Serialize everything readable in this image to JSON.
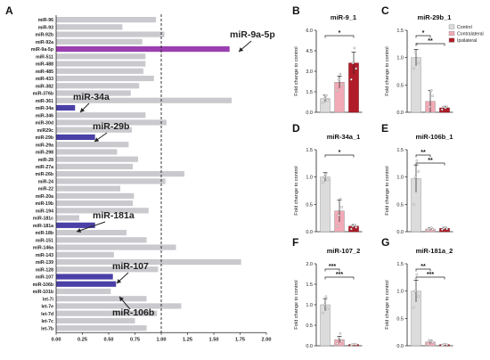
{
  "panel_labels": [
    "A",
    "B",
    "C",
    "D",
    "E",
    "F",
    "G"
  ],
  "colors": {
    "gray_bar": "#c9c9ce",
    "highlight_purple": "#9b3fb0",
    "highlight_blue": "#4a40a6",
    "control": "#dcdcdc",
    "contralateral": "#f2aab6",
    "ipsilateral": "#b01c28"
  },
  "chart_data": [
    {
      "panel": "A",
      "type": "bar",
      "orientation": "horizontal",
      "categories": [
        "miR-96",
        "miR-93",
        "miR-92b",
        "miR-92a",
        "miR-9a-5p",
        "miR-511",
        "miR-488",
        "miR-485",
        "miR-433",
        "miR-382",
        "miR-376b",
        "miR-361",
        "miR-34a",
        "miR-346",
        "miR-30d",
        "miR29c",
        "miR-29b",
        "miR-29a",
        "miR-298",
        "miR-28",
        "miR-27a",
        "miR-26b",
        "miR-24",
        "miR-22",
        "miR-20a",
        "miR-19b",
        "miR-194",
        "miR-181c",
        "miR-181a",
        "miR-18b",
        "miR-151",
        "miR-146a",
        "miR-143",
        "miR-139",
        "miR-128",
        "miR-107",
        "miR-106b",
        "miR-101b",
        "let-7i",
        "let-7e",
        "let-7d",
        "let-7c",
        "let-7b"
      ],
      "values": [
        0.95,
        0.63,
        1.03,
        0.82,
        1.65,
        0.85,
        0.85,
        0.83,
        0.93,
        0.79,
        0.71,
        1.67,
        0.18,
        0.85,
        1.05,
        0.72,
        0.37,
        0.69,
        0.58,
        0.78,
        0.73,
        1.22,
        1.04,
        0.61,
        0.74,
        0.73,
        0.88,
        0.22,
        0.37,
        0.67,
        0.86,
        1.14,
        0.55,
        1.76,
        0.97,
        0.54,
        0.57,
        0.52,
        0.86,
        1.19,
        0.96,
        0.75,
        0.86
      ],
      "highlight": {
        "miR-9a-5p": "purple",
        "miR-34a": "blue",
        "miR-29b": "blue",
        "miR-181a": "blue",
        "miR-107": "blue",
        "miR-106b": "blue"
      },
      "annotations": [
        "miR-9a-5p",
        "miR-34a",
        "miR-29b",
        "miR-181a",
        "miR-107",
        "miR-106b"
      ],
      "xticks": [
        "0.00",
        "0.25",
        "0.50",
        "0.75",
        "1.00",
        "1.25",
        "1.50",
        "1.75",
        "2.00"
      ],
      "xlim": [
        0,
        2.0
      ],
      "reference_line": 1.0,
      "grid": false
    },
    {
      "panel": "B",
      "type": "bar",
      "title": "miR-9_1",
      "ylabel": "Fold change to control",
      "ylim": [
        0,
        6
      ],
      "yticks": [
        "0.0",
        "1.5",
        "3.0",
        "4.5",
        "6.0"
      ],
      "categories": [
        "Control",
        "Contralateral",
        "Ipsilateral"
      ],
      "values": [
        1.0,
        2.2,
        3.6
      ],
      "errors": [
        0.25,
        0.45,
        0.8
      ],
      "points": [
        [
          0.7,
          1.0,
          1.2,
          0.9
        ],
        [
          1.6,
          2.4,
          2.8,
          2.0
        ],
        [
          2.4,
          3.6,
          4.7,
          3.2
        ]
      ],
      "significance": [
        {
          "between": [
            0,
            2
          ],
          "label": "*"
        }
      ]
    },
    {
      "panel": "C",
      "type": "bar",
      "title": "miR-29b_1",
      "ylabel": "Fold change to control",
      "ylim": [
        0,
        1.5
      ],
      "yticks": [
        "0.0",
        "0.5",
        "1.0",
        "1.5"
      ],
      "categories": [
        "Control",
        "Contralateral",
        "Ipsilateral"
      ],
      "values": [
        1.0,
        0.2,
        0.08
      ],
      "errors": [
        0.15,
        0.2,
        0.03
      ],
      "points": [
        [
          0.8,
          1.1,
          1.25,
          0.9
        ],
        [
          0.0,
          0.1,
          0.4,
          0.3
        ],
        [
          0.05,
          0.1,
          0.08,
          0.1
        ]
      ],
      "significance": [
        {
          "between": [
            0,
            1
          ],
          "label": "*"
        },
        {
          "between": [
            0,
            2
          ],
          "label": "**"
        }
      ],
      "legend": {
        "entries": [
          "Control",
          "Contralateral",
          "Ipsilateral"
        ],
        "placement": "top-right"
      }
    },
    {
      "panel": "D",
      "type": "bar",
      "title": "miR-34a_1",
      "ylabel": "Fold change to control",
      "ylim": [
        0,
        1.5
      ],
      "yticks": [
        "0.0",
        "0.5",
        "1.0",
        "1.5"
      ],
      "categories": [
        "Control",
        "Contralateral",
        "Ipsilateral"
      ],
      "values": [
        1.0,
        0.38,
        0.1
      ],
      "errors": [
        0.08,
        0.2,
        0.03
      ],
      "points": [
        [
          0.9,
          1.0,
          1.05,
          0.95
        ],
        [
          0.1,
          0.3,
          0.6,
          0.45
        ],
        [
          0.05,
          0.1,
          0.12,
          0.08
        ]
      ],
      "significance": [
        {
          "between": [
            0,
            2
          ],
          "label": "*"
        }
      ]
    },
    {
      "panel": "E",
      "type": "bar",
      "title": "miR-106b_1",
      "ylabel": "Fold change to control",
      "ylim": [
        0,
        1.5
      ],
      "yticks": [
        "0.0",
        "0.5",
        "1.0",
        "1.5"
      ],
      "categories": [
        "Control",
        "Contralateral",
        "Ipsilateral"
      ],
      "values": [
        0.97,
        0.05,
        0.06
      ],
      "errors": [
        0.25,
        0.02,
        0.02
      ],
      "points": [
        [
          0.5,
          1.0,
          1.3,
          1.1
        ],
        [
          0.03,
          0.05,
          0.07,
          0.04
        ],
        [
          0.04,
          0.06,
          0.08,
          0.05
        ]
      ],
      "significance": [
        {
          "between": [
            0,
            1
          ],
          "label": "**"
        },
        {
          "between": [
            0,
            2
          ],
          "label": "**"
        }
      ]
    },
    {
      "panel": "F",
      "type": "bar",
      "title": "miR-107_2",
      "ylabel": "Fold change to control",
      "ylim": [
        0,
        2.0
      ],
      "yticks": [
        "0.0",
        "0.5",
        "1.0",
        "1.5",
        "2.0"
      ],
      "categories": [
        "Control",
        "Contralateral",
        "Ipsilateral"
      ],
      "values": [
        1.0,
        0.15,
        0.03
      ],
      "errors": [
        0.15,
        0.08,
        0.01
      ],
      "points": [
        [
          0.8,
          1.0,
          1.2,
          0.9
        ],
        [
          0.05,
          0.2,
          0.3,
          0.1
        ],
        [
          0.02,
          0.03,
          0.04,
          0.03
        ]
      ],
      "significance": [
        {
          "between": [
            0,
            1
          ],
          "label": "***"
        },
        {
          "between": [
            0,
            2
          ],
          "label": "***"
        }
      ]
    },
    {
      "panel": "G",
      "type": "bar",
      "title": "miR-181a_2",
      "ylabel": "Fold change to control",
      "ylim": [
        0,
        1.5
      ],
      "yticks": [
        "0.0",
        "0.5",
        "1.0",
        "1.5"
      ],
      "categories": [
        "Control",
        "Contralateral",
        "Ipsilateral"
      ],
      "values": [
        1.0,
        0.07,
        0.02
      ],
      "errors": [
        0.2,
        0.03,
        0.01
      ],
      "points": [
        [
          0.7,
          1.0,
          1.3,
          0.9
        ],
        [
          0.03,
          0.1,
          0.08,
          0.06
        ],
        [
          0.01,
          0.02,
          0.03,
          0.02
        ]
      ],
      "significance": [
        {
          "between": [
            0,
            1
          ],
          "label": "**"
        },
        {
          "between": [
            0,
            2
          ],
          "label": "***"
        }
      ]
    }
  ]
}
